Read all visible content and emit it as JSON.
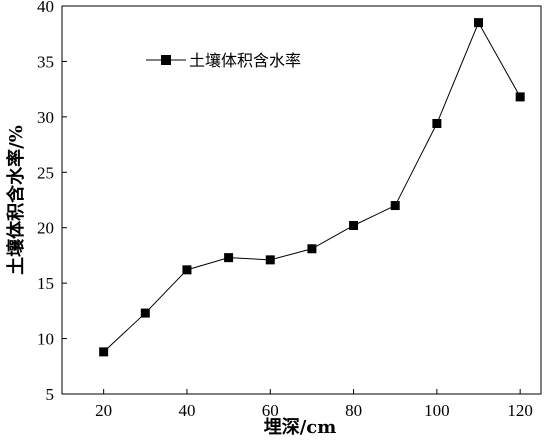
{
  "chart_data": {
    "type": "line",
    "xlabel": "埋深/cm",
    "ylabel": "土壤体积含水率/%",
    "xlim": [
      10,
      125
    ],
    "ylim": [
      5,
      40
    ],
    "x_ticks": [
      20,
      40,
      60,
      80,
      100,
      120
    ],
    "y_ticks": [
      5,
      10,
      15,
      20,
      25,
      30,
      35,
      40
    ],
    "grid": false,
    "legend_position": "top-left",
    "series": [
      {
        "name": "土壤体积含水率",
        "marker": "square",
        "color": "#000000",
        "x": [
          20,
          30,
          40,
          50,
          60,
          70,
          80,
          90,
          100,
          110,
          120
        ],
        "y": [
          8.8,
          12.3,
          16.2,
          17.3,
          17.1,
          18.1,
          20.2,
          22.0,
          29.4,
          38.5,
          31.8
        ]
      }
    ]
  }
}
